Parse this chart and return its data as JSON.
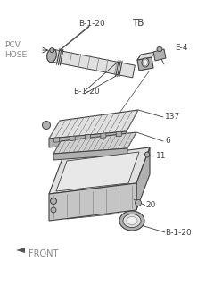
{
  "bg_color": "#ffffff",
  "line_color": "#404040",
  "gray_fill": "#c8c8c8",
  "gray_dark": "#888888",
  "gray_light": "#e0e0e0",
  "gray_mid": "#b0b0b0",
  "labels": {
    "B1_20_top": "B-1-20",
    "TB": "TB",
    "PCV_HOSE": "PCV\nHOSE",
    "E4": "E-4",
    "B1_20_mid": "B-1-20",
    "part_137": "137",
    "part_6": "6",
    "part_11": "11",
    "part_20": "20",
    "B1_20_bot": "B-1-20",
    "FRONT": "FRONT"
  },
  "figsize": [
    2.49,
    3.2
  ],
  "dpi": 100
}
